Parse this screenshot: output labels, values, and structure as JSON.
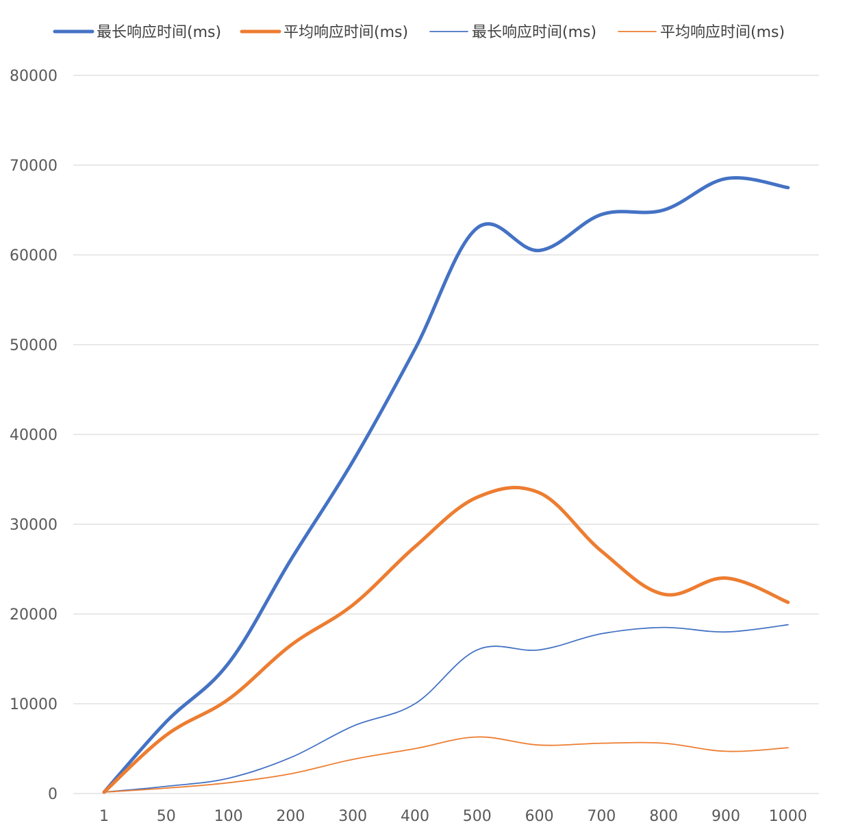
{
  "chart_data": {
    "type": "line",
    "title": "",
    "xlabel": "",
    "ylabel": "",
    "categories": [
      "1",
      "50",
      "100",
      "200",
      "300",
      "400",
      "500",
      "600",
      "700",
      "800",
      "900",
      "1000"
    ],
    "ylim": [
      0,
      80000
    ],
    "yticks": [
      "0",
      "10000",
      "20000",
      "30000",
      "40000",
      "50000",
      "60000",
      "70000",
      "80000"
    ],
    "grid": true,
    "legend_position": "top",
    "series": [
      {
        "name": "最长响应时间(ms)",
        "color": "#4472C4",
        "width": "thick",
        "values": [
          150,
          8000,
          14500,
          26000,
          37000,
          49500,
          63000,
          60500,
          64500,
          65000,
          68500,
          67500
        ]
      },
      {
        "name": "平均响应时间(ms)",
        "color": "#ED7D31",
        "width": "thick",
        "values": [
          150,
          6500,
          10500,
          16500,
          21000,
          27500,
          33000,
          33500,
          27000,
          22200,
          24000,
          21300
        ]
      },
      {
        "name": "最长响应时间(ms)",
        "color": "#4472C4",
        "width": "thin",
        "values": [
          150,
          800,
          1700,
          4000,
          7500,
          10000,
          16000,
          16000,
          17800,
          18500,
          18000,
          18800
        ]
      },
      {
        "name": "平均响应时间(ms)",
        "color": "#ED7D31",
        "width": "thin",
        "values": [
          150,
          600,
          1200,
          2200,
          3800,
          5000,
          6300,
          5400,
          5600,
          5600,
          4700,
          5100
        ]
      }
    ]
  }
}
